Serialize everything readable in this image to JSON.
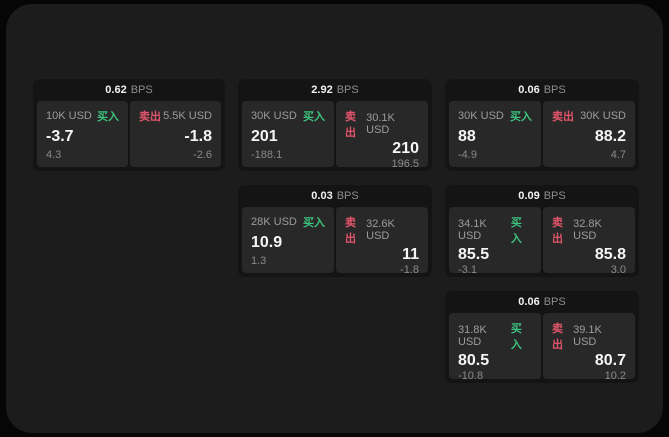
{
  "labels": {
    "bps_unit": "BPS",
    "buy": "买入",
    "sell": "卖出"
  },
  "colors": {
    "buy_accent": "#3cc27e",
    "sell_accent": "#e0556a"
  },
  "cards": [
    {
      "bps": "0.62",
      "buy": {
        "size": "10K USD",
        "price": "-3.7",
        "change": "4.3"
      },
      "sell": {
        "size": "5.5K USD",
        "price": "-1.8",
        "change": "-2.6"
      }
    },
    {
      "bps": "2.92",
      "buy": {
        "size": "30K USD",
        "price": "201",
        "change": "-188.1"
      },
      "sell": {
        "size": "30.1K USD",
        "price": "210",
        "change": "196.5"
      }
    },
    {
      "bps": "0.06",
      "buy": {
        "size": "30K USD",
        "price": "88",
        "change": "-4.9"
      },
      "sell": {
        "size": "30K USD",
        "price": "88.2",
        "change": "4.7"
      }
    },
    {
      "bps": "0.03",
      "buy": {
        "size": "28K USD",
        "price": "10.9",
        "change": "1.3"
      },
      "sell": {
        "size": "32.6K USD",
        "price": "11",
        "change": "-1.8"
      }
    },
    {
      "bps": "0.09",
      "buy": {
        "size": "34.1K USD",
        "price": "85.5",
        "change": "-3.1"
      },
      "sell": {
        "size": "32.8K USD",
        "price": "85.8",
        "change": "3.0"
      }
    },
    {
      "bps": "0.06",
      "buy": {
        "size": "31.8K USD",
        "price": "80.5",
        "change": "-10.8"
      },
      "sell": {
        "size": "39.1K USD",
        "price": "80.7",
        "change": "10.2"
      }
    }
  ]
}
